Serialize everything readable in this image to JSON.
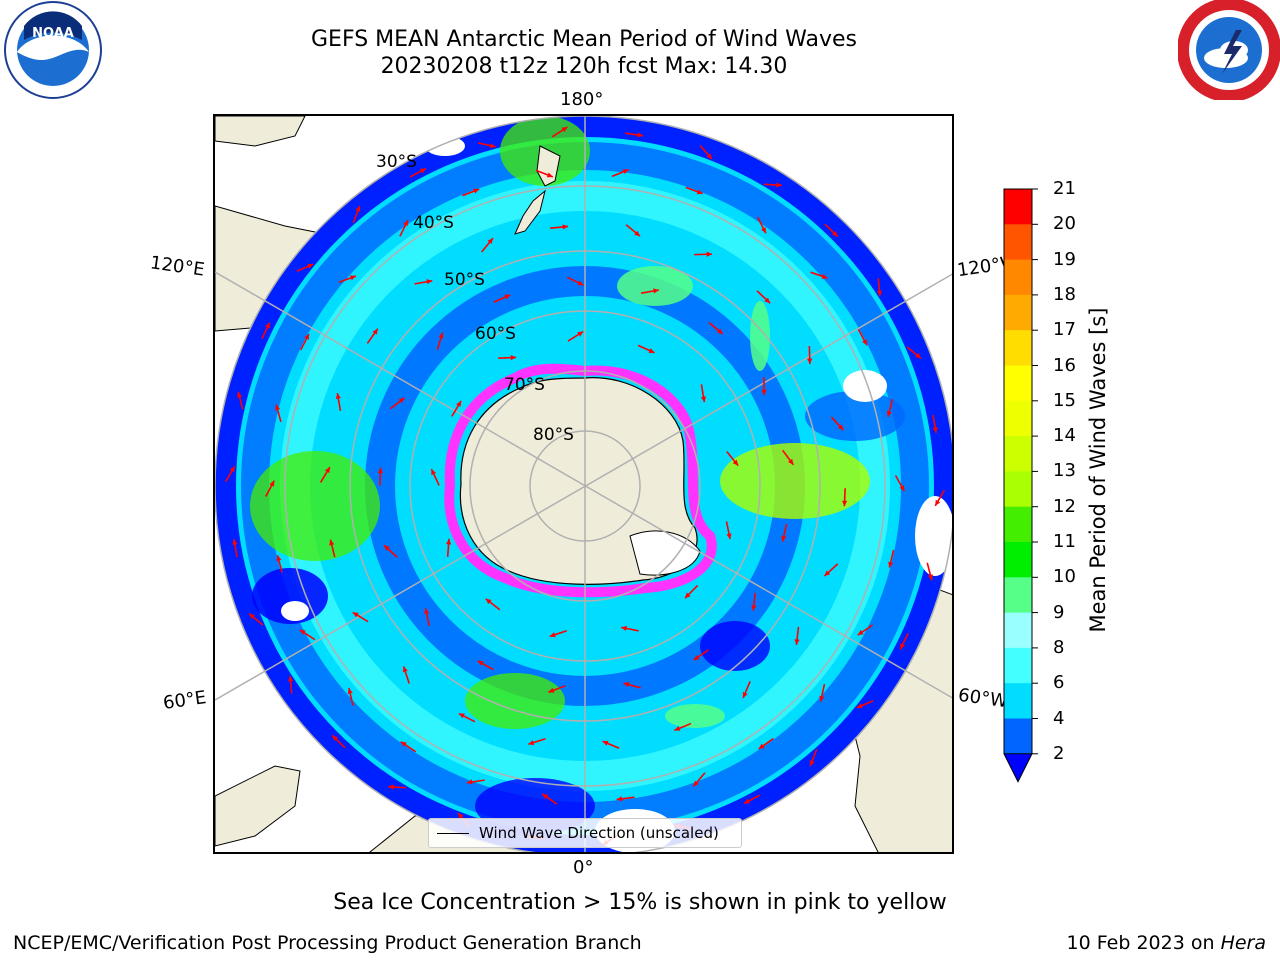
{
  "title": {
    "line1": "GEFS MEAN Antarctic Mean Period of Wind Waves",
    "line2": "20230208 t12z 120h fcst   Max: 14.30"
  },
  "map": {
    "projection": "south-polar-stereographic",
    "lon_labels": {
      "top": "180°",
      "bottom": "0°",
      "left_upper": "120°E",
      "left_lower": "60°E",
      "right_upper": "120°W",
      "right_lower": "60°W"
    },
    "lat_labels": [
      "30°S",
      "40°S",
      "50°S",
      "60°S",
      "70°S",
      "80°S"
    ],
    "legend_label": "Wind Wave Direction (unscaled)",
    "arrow_color": "#ff0000",
    "land_color": "#efedda",
    "sea_ice_color": "#ff33ff"
  },
  "colorbar": {
    "label": "Mean Period of Wind Waves [s]",
    "ticks": [
      "2",
      "4",
      "6",
      "8",
      "9",
      "10",
      "11",
      "12",
      "13",
      "14",
      "15",
      "16",
      "17",
      "18",
      "19",
      "20",
      "21"
    ],
    "colors": [
      "#0066ff",
      "#00ddff",
      "#44ffff",
      "#99ffff",
      "#55ff88",
      "#00ee00",
      "#44ee00",
      "#aaff00",
      "#ccff00",
      "#eeff00",
      "#ffff00",
      "#ffdd00",
      "#ffaa00",
      "#ff8800",
      "#ff5500",
      "#ff0000"
    ],
    "extend_color": "#0000ff"
  },
  "footnote": "Sea Ice Concentration > 15% is shown in pink to yellow",
  "credit_left": "NCEP/EMC/Verification Post Processing Product Generation Branch",
  "credit_right_date": "10 Feb 2023 on",
  "credit_right_host": "Hera"
}
